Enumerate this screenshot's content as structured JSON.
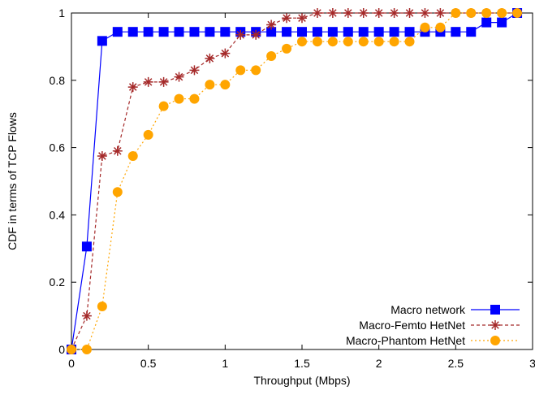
{
  "chart_data": {
    "type": "line",
    "xlabel": "Throughput (Mbps)",
    "ylabel": "CDF in terms of TCP Flows",
    "xlim": [
      0,
      3
    ],
    "ylim": [
      0,
      1
    ],
    "xticks": [
      0,
      0.5,
      1,
      1.5,
      2,
      2.5,
      3
    ],
    "xtick_labels": [
      "0",
      "0.5",
      "1",
      "1.5",
      "2",
      "2.5",
      "3"
    ],
    "yticks": [
      0,
      0.2,
      0.4,
      0.6,
      0.8,
      1
    ],
    "ytick_labels": [
      "0",
      "0.2",
      "0.4",
      "0.6",
      "0.8",
      "1"
    ],
    "legend_position": "bottom-right",
    "grid": false,
    "series": [
      {
        "name": "Macro network",
        "color": "#0000ff",
        "line_style": "solid",
        "marker": "square",
        "x": [
          0,
          0.1,
          0.2,
          0.3,
          0.4,
          0.5,
          0.6,
          0.7,
          0.8,
          0.9,
          1.0,
          1.1,
          1.2,
          1.3,
          1.4,
          1.5,
          1.6,
          1.7,
          1.8,
          1.9,
          2.0,
          2.1,
          2.2,
          2.3,
          2.4,
          2.5,
          2.6,
          2.7,
          2.8,
          2.9
        ],
        "y": [
          0,
          0.306,
          0.917,
          0.944,
          0.944,
          0.944,
          0.944,
          0.944,
          0.944,
          0.944,
          0.944,
          0.944,
          0.944,
          0.944,
          0.944,
          0.944,
          0.944,
          0.944,
          0.944,
          0.944,
          0.944,
          0.944,
          0.944,
          0.944,
          0.944,
          0.944,
          0.944,
          0.972,
          0.972,
          1.0
        ]
      },
      {
        "name": "Macro-Femto HetNet",
        "color": "#a52a2a",
        "line_style": "dashed",
        "marker": "star",
        "x": [
          0,
          0.1,
          0.2,
          0.3,
          0.4,
          0.5,
          0.6,
          0.7,
          0.8,
          0.9,
          1.0,
          1.1,
          1.2,
          1.3,
          1.4,
          1.5,
          1.6,
          1.7,
          1.8,
          1.9,
          2.0,
          2.1,
          2.2,
          2.3,
          2.4,
          2.5,
          2.6,
          2.7,
          2.8,
          2.9
        ],
        "y": [
          0,
          0.1,
          0.575,
          0.59,
          0.78,
          0.795,
          0.795,
          0.81,
          0.83,
          0.865,
          0.88,
          0.935,
          0.935,
          0.965,
          0.985,
          0.985,
          1.0,
          1.0,
          1.0,
          1.0,
          1.0,
          1.0,
          1.0,
          1.0,
          1.0,
          1.0,
          1.0,
          1.0,
          1.0,
          1.0
        ]
      },
      {
        "name": "Macro-Phantom HetNet",
        "color": "#ffa500",
        "line_style": "dotted",
        "marker": "circle",
        "x": [
          0,
          0.1,
          0.2,
          0.3,
          0.4,
          0.5,
          0.6,
          0.7,
          0.8,
          0.9,
          1.0,
          1.1,
          1.2,
          1.3,
          1.4,
          1.5,
          1.6,
          1.7,
          1.8,
          1.9,
          2.0,
          2.1,
          2.2,
          2.3,
          2.4,
          2.5,
          2.6,
          2.7,
          2.8,
          2.9
        ],
        "y": [
          0,
          0,
          0.128,
          0.468,
          0.575,
          0.638,
          0.723,
          0.745,
          0.745,
          0.787,
          0.787,
          0.83,
          0.83,
          0.872,
          0.894,
          0.915,
          0.915,
          0.915,
          0.915,
          0.915,
          0.915,
          0.915,
          0.915,
          0.957,
          0.957,
          1.0,
          1.0,
          1.0,
          1.0,
          1.0
        ]
      }
    ]
  }
}
